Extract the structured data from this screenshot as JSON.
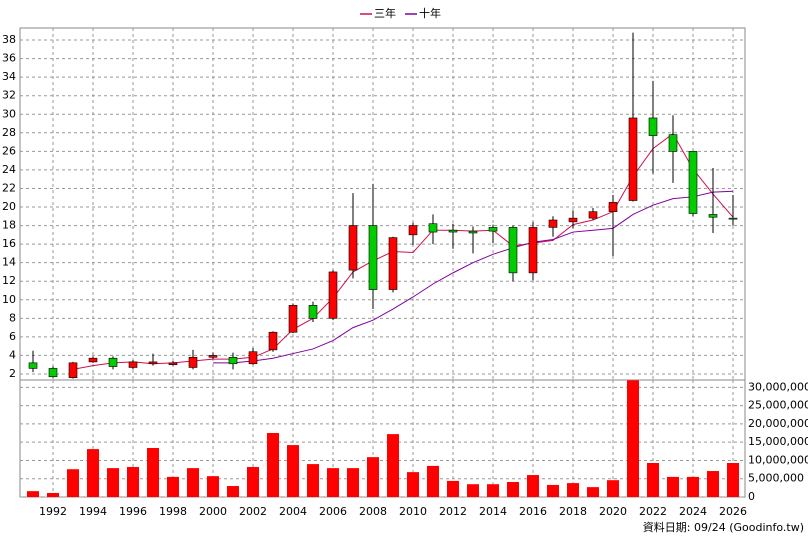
{
  "chart_data": [
    {
      "type": "candlestick",
      "x": [
        1991,
        1992,
        1993,
        1994,
        1995,
        1996,
        1997,
        1998,
        1999,
        2000,
        2001,
        2002,
        2003,
        2004,
        2005,
        2006,
        2007,
        2008,
        2009,
        2010,
        2011,
        2012,
        2013,
        2014,
        2015,
        2016,
        2017,
        2018,
        2019,
        2020,
        2021,
        2022,
        2023,
        2024,
        2025,
        2026
      ],
      "open": [
        3.2,
        2.6,
        1.6,
        3.3,
        3.7,
        2.7,
        3.1,
        3.0,
        2.7,
        3.8,
        3.8,
        3.1,
        4.6,
        6.5,
        9.4,
        8.0,
        13.2,
        18.0,
        11.1,
        17.0,
        18.2,
        17.5,
        17.4,
        17.8,
        17.8,
        12.9,
        17.8,
        18.4,
        18.8,
        19.5,
        20.7,
        29.6,
        27.8,
        26.0,
        19.2,
        18.8
      ],
      "high": [
        4.5,
        2.8,
        3.3,
        3.9,
        3.9,
        3.5,
        4.2,
        3.4,
        4.6,
        4.3,
        4.3,
        4.8,
        6.6,
        9.6,
        9.8,
        13.2,
        21.5,
        22.5,
        16.8,
        18.3,
        19.2,
        18.2,
        17.9,
        18.1,
        18.0,
        18.4,
        19.0,
        19.6,
        19.9,
        21.3,
        38.8,
        33.6,
        29.9,
        26.0,
        24.2,
        21.3
      ],
      "low": [
        2.2,
        1.6,
        1.5,
        3.2,
        2.5,
        2.5,
        2.9,
        2.9,
        2.5,
        3.6,
        2.5,
        3.0,
        4.4,
        6.4,
        7.6,
        7.8,
        12.3,
        9.0,
        10.8,
        15.9,
        16.0,
        15.5,
        15.0,
        16.1,
        12.0,
        12.1,
        16.8,
        17.7,
        18.6,
        14.7,
        20.6,
        23.6,
        22.6,
        19.0,
        17.2,
        18.0
      ],
      "close": [
        2.6,
        1.7,
        3.2,
        3.7,
        2.8,
        3.3,
        3.3,
        3.2,
        3.8,
        4.0,
        3.1,
        4.4,
        6.5,
        9.4,
        8.0,
        13.0,
        18.0,
        11.1,
        16.7,
        18.0,
        17.3,
        17.3,
        17.2,
        17.4,
        12.9,
        17.8,
        18.6,
        18.8,
        19.5,
        20.5,
        29.6,
        27.7,
        26.0,
        19.3,
        18.9,
        18.7
      ],
      "up_color": "#ff0000",
      "down_color": "#00cc00",
      "series": [
        {
          "name": "三年",
          "color": "#d0104c",
          "values": [
            null,
            null,
            2.5,
            2.9,
            3.2,
            3.3,
            3.1,
            3.2,
            3.4,
            3.6,
            3.6,
            3.8,
            4.7,
            6.8,
            8.0,
            10.2,
            13.0,
            14.2,
            15.2,
            15.1,
            17.5,
            17.5,
            17.4,
            17.5,
            15.8,
            16.1,
            16.4,
            18.1,
            18.6,
            19.5,
            23.3,
            26.3,
            27.9,
            24.1,
            21.4,
            18.9
          ]
        },
        {
          "name": "十年",
          "color": "#8000a0",
          "values": [
            null,
            null,
            null,
            null,
            null,
            null,
            null,
            null,
            null,
            3.2,
            3.2,
            3.4,
            3.7,
            4.2,
            4.7,
            5.6,
            7.0,
            7.8,
            9.0,
            10.3,
            11.7,
            12.9,
            14.0,
            14.9,
            15.6,
            16.2,
            16.5,
            17.3,
            17.5,
            17.7,
            19.2,
            20.2,
            20.9,
            21.1,
            21.6,
            21.7
          ]
        }
      ],
      "xlim": [
        1990.35,
        2026.6
      ],
      "ylim": [
        1.35,
        39.3
      ],
      "yticks": [
        2,
        4,
        6,
        8,
        10,
        12,
        14,
        16,
        18,
        20,
        22,
        24,
        26,
        28,
        30,
        32,
        34,
        36,
        38
      ],
      "grid": true
    },
    {
      "type": "bar",
      "x": [
        1991,
        1992,
        1993,
        1994,
        1995,
        1996,
        1997,
        1998,
        1999,
        2000,
        2001,
        2002,
        2003,
        2004,
        2005,
        2006,
        2007,
        2008,
        2009,
        2010,
        2011,
        2012,
        2013,
        2014,
        2015,
        2016,
        2017,
        2018,
        2019,
        2020,
        2021,
        2022,
        2023,
        2024,
        2025,
        2026
      ],
      "values": [
        1600000,
        1100000,
        7600000,
        13100000,
        7900000,
        8200000,
        13400000,
        5500000,
        7900000,
        5700000,
        3000000,
        8200000,
        17500000,
        14200000,
        9000000,
        7900000,
        7900000,
        10900000,
        17200000,
        6800000,
        8500000,
        4400000,
        3500000,
        3500000,
        4100000,
        6000000,
        3300000,
        3800000,
        2700000,
        4600000,
        31900000,
        9300000,
        5500000,
        5500000,
        7100000,
        9300000
      ],
      "color": "#ff0000",
      "xlim": [
        1990.35,
        2026.6
      ],
      "ylim": [
        0,
        32000000
      ],
      "xticks": [
        1992,
        1994,
        1996,
        1998,
        2000,
        2002,
        2004,
        2006,
        2008,
        2010,
        2012,
        2014,
        2016,
        2018,
        2020,
        2022,
        2024,
        2026
      ],
      "yticks": [
        0,
        {
          "value": 5000000,
          "label": "5,000,000"
        },
        {
          "value": 10000000,
          "label": "10,000,000"
        },
        {
          "value": 15000000,
          "label": "15,000,000"
        },
        {
          "value": 20000000,
          "label": "20,000,000"
        },
        {
          "value": 25000000,
          "label": "25,000,000"
        },
        {
          "value": 30000000,
          "label": "30,000,000"
        }
      ],
      "grid": true
    }
  ],
  "source": "資料日期: 09/24  (Goodinfo.tw)"
}
